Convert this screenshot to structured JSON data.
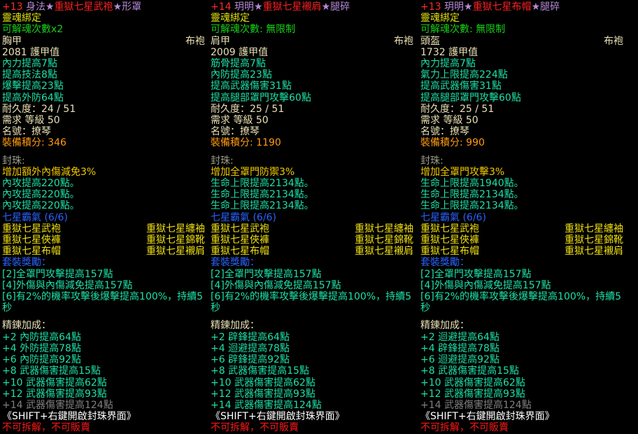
{
  "colors": {
    "title_level": "#ff2a2a",
    "title_affix": "#b68ad8",
    "title_name": "#ff2020",
    "stat": "#1ee0a6",
    "score": "#ff9a10",
    "set_name": "#2a62ff",
    "warning": "#ff1818"
  },
  "columns": [
    {
      "title": {
        "level": "+13",
        "prefix": "身法★",
        "name": "重獄七星武袍",
        "suffix": "★形罩"
      },
      "bind": "靈魂綁定",
      "soul": "可解魂次數x2",
      "slot": "胸甲",
      "type": "布袍",
      "armor": "2081 護甲值",
      "stats": [
        "內力提高7點",
        "提高技法8點",
        "爆擊提高23點",
        "提高外防64點"
      ],
      "durability": "耐久度：24 / 51",
      "level_req": "需求 等級 50",
      "nickname": "名號：撩琴",
      "score": "裝備積分: 346",
      "socket_label": "封珠:",
      "sockets": [
        {
          "text": "增加額外內傷減免3%",
          "kind": "sock"
        },
        {
          "text": "內攻提高220點。",
          "kind": "stat"
        },
        {
          "text": "內攻提高220點。",
          "kind": "stat"
        },
        {
          "text": "內攻提高220點。",
          "kind": "stat"
        }
      ],
      "set_name": "七星霸氣 (6/6)",
      "set_items": [
        [
          "重獄七星武袍",
          "重獄七星纏袖"
        ],
        [
          "重獄七星俠褲",
          "重獄七星錦靴"
        ],
        [
          "重獄七星布帽",
          "重獄七星襯肩"
        ]
      ],
      "set_bonus_label": "套裝獎勵：",
      "set_bonus": [
        "[2]全罩門攻擊提高157點",
        "[4]外傷與內傷減免提高157點",
        "[6]有2%的機率攻擊後爆擊提高100%，持續5秒"
      ],
      "refine_label": "精鍊加成：",
      "refine": [
        {
          "text": "+2 內防提高64點",
          "active": true
        },
        {
          "text": "+4 外防提高78點",
          "active": true
        },
        {
          "text": "+6 內防提高92點",
          "active": true
        },
        {
          "text": "+8 武器傷害提高15點",
          "active": true
        },
        {
          "text": "+10 武器傷害提高62點",
          "active": true
        },
        {
          "text": "+12 武器傷害提高93點",
          "active": true
        },
        {
          "text": "+14 武器傷害提高124點",
          "active": false
        }
      ],
      "hint": "《SHIFT+右鍵開啟封珠界面》",
      "warning": "不可拆解，不可販賣"
    },
    {
      "title": {
        "level": "+14",
        "prefix": "玥明★",
        "name": "重獄七星襯肩",
        "suffix": "★腿碎"
      },
      "bind": "靈魂綁定",
      "soul": "可解魂次數: 無限制",
      "slot": "肩甲",
      "type": "布袍",
      "armor": "2009 護甲值",
      "stats": [
        "筋骨提高7點",
        "內防提高23點",
        "提高武器傷害31點",
        "提高腿部罩門攻擊60點"
      ],
      "durability": "耐久度：25 / 51",
      "level_req": "需求 等級 50",
      "nickname": "名號：撩琴",
      "score": "裝備積分: 1190",
      "socket_label": "封珠:",
      "sockets": [
        {
          "text": "增加全罩門防禦3%",
          "kind": "sock"
        },
        {
          "text": "生命上限提高2134點。",
          "kind": "stat"
        },
        {
          "text": "生命上限提高2134點。",
          "kind": "stat"
        },
        {
          "text": "生命上限提高2134點。",
          "kind": "stat"
        }
      ],
      "set_name": "七星霸氣 (6/6)",
      "set_items": [
        [
          "重獄七星武袍",
          "重獄七星纏袖"
        ],
        [
          "重獄七星俠褲",
          "重獄七星錦靴"
        ],
        [
          "重獄七星布帽",
          "重獄七星襯肩"
        ]
      ],
      "set_bonus_label": "套裝獎勵：",
      "set_bonus": [
        "[2]全罩門攻擊提高157點",
        "[4]外傷與內傷減免提高157點",
        "[6]有2%的機率攻擊後爆擊提高100%，持續5秒"
      ],
      "refine_label": "精鍊加成：",
      "refine": [
        {
          "text": "+2 辟鋒提高64點",
          "active": true
        },
        {
          "text": "+4 迴避提高78點",
          "active": true
        },
        {
          "text": "+6 辟鋒提高92點",
          "active": true
        },
        {
          "text": "+8 武器傷害提高15點",
          "active": true
        },
        {
          "text": "+10 武器傷害提高62點",
          "active": true
        },
        {
          "text": "+12 武器傷害提高93點",
          "active": true
        },
        {
          "text": "+14 武器傷害提高124點",
          "active": true
        }
      ],
      "hint": "《SHIFT+右鍵開啟封珠界面》",
      "warning": "不可拆解，不可販賣"
    },
    {
      "title": {
        "level": "+13",
        "prefix": "玥明★",
        "name": "重獄七星布帽",
        "suffix": "★腿碎"
      },
      "bind": "靈魂綁定",
      "soul": "可解魂次數: 無限制",
      "slot": "頭盔",
      "type": "布袍",
      "armor": "1732 護甲值",
      "stats": [
        "內力提高7點",
        "氣力上限提高224點",
        "提高武器傷害31點",
        "提高腿部罩門攻擊60點"
      ],
      "durability": "耐久度：25 / 51",
      "level_req": "需求 等級 50",
      "nickname": "名號：撩琴",
      "score": "裝備積分: 990",
      "socket_label": "封珠:",
      "sockets": [
        {
          "text": "增加全罩門攻擊3%",
          "kind": "sock"
        },
        {
          "text": "生命上限提高1940點。",
          "kind": "stat"
        },
        {
          "text": "生命上限提高2134點。",
          "kind": "stat"
        },
        {
          "text": "生命上限提高2134點。",
          "kind": "stat"
        }
      ],
      "set_name": "七星霸氣 (6/6)",
      "set_items": [
        [
          "重獄七星武袍",
          "重獄七星纏袖"
        ],
        [
          "重獄七星俠褲",
          "重獄七星錦靴"
        ],
        [
          "重獄七星布帽",
          "重獄七星襯肩"
        ]
      ],
      "set_bonus_label": "套裝獎勵：",
      "set_bonus": [
        "[2]全罩門攻擊提高157點",
        "[4]外傷與內傷減免提高157點",
        "[6]有2%的機率攻擊後爆擊提高100%，持續5秒"
      ],
      "refine_label": "精鍊加成：",
      "refine": [
        {
          "text": "+2 迴避提高64點",
          "active": true
        },
        {
          "text": "+4 辟鋒提高78點",
          "active": true
        },
        {
          "text": "+6 迴避提高92點",
          "active": true
        },
        {
          "text": "+8 武器傷害提高15點",
          "active": true
        },
        {
          "text": "+10 武器傷害提高62點",
          "active": true
        },
        {
          "text": "+12 武器傷害提高93點",
          "active": true
        },
        {
          "text": "+14 武器傷害提高124點",
          "active": false
        }
      ],
      "hint": "《SHIFT+右鍵開啟封珠界面》",
      "warning": "不可拆解，不可販賣"
    }
  ]
}
